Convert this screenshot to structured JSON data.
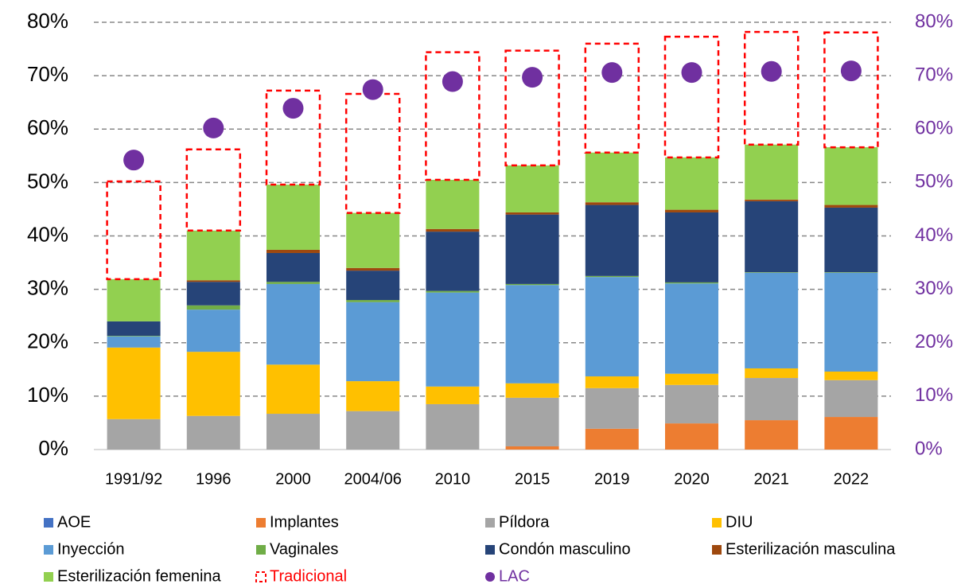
{
  "chart_data": {
    "type": "bar",
    "stacked": true,
    "categories": [
      "1991/92",
      "1996",
      "2000",
      "2004/06",
      "2010",
      "2015",
      "2019",
      "2020",
      "2021",
      "2022"
    ],
    "series": [
      {
        "name": "AOE",
        "color": "#4472c4",
        "values": [
          0,
          0,
          0,
          0,
          0,
          0,
          0,
          0,
          0,
          0
        ]
      },
      {
        "name": "Implantes",
        "color": "#ed7d31",
        "values": [
          0,
          0,
          0,
          0,
          0,
          0.6,
          3.9,
          4.9,
          5.5,
          6.1
        ]
      },
      {
        "name": "Píldora",
        "color": "#a5a5a5",
        "values": [
          5.7,
          6.3,
          6.7,
          7.2,
          8.5,
          9.1,
          7.6,
          7.2,
          7.9,
          6.9
        ]
      },
      {
        "name": "DIU",
        "color": "#ffc000",
        "values": [
          13.4,
          12.0,
          9.2,
          5.6,
          3.3,
          2.7,
          2.2,
          2.1,
          1.8,
          1.6
        ]
      },
      {
        "name": "Inyección",
        "color": "#5b9bd5",
        "values": [
          2.1,
          7.9,
          15.1,
          14.8,
          17.6,
          18.4,
          18.6,
          16.9,
          17.9,
          18.5
        ]
      },
      {
        "name": "Vaginales",
        "color": "#70ad47",
        "values": [
          0.1,
          0.8,
          0.4,
          0.4,
          0.3,
          0.2,
          0.2,
          0.2,
          0.1,
          0.1
        ]
      },
      {
        "name": "Condón masculino",
        "color": "#264478",
        "values": [
          2.7,
          4.4,
          5.4,
          5.5,
          11.1,
          13.0,
          13.3,
          13.1,
          13.3,
          12.1
        ]
      },
      {
        "name": "Esterilización masculina",
        "color": "#9e480e",
        "values": [
          0,
          0.3,
          0.6,
          0.5,
          0.5,
          0.4,
          0.5,
          0.5,
          0.3,
          0.5
        ]
      },
      {
        "name": "Esterilización femenina",
        "color": "#92d050",
        "values": [
          7.9,
          9.3,
          12.2,
          10.3,
          9.2,
          8.8,
          9.3,
          9.8,
          10.3,
          10.8
        ]
      },
      {
        "name": "Tradicional",
        "color": "#ff0000",
        "dashed": true,
        "values": [
          18.3,
          15.2,
          17.6,
          22.3,
          23.9,
          21.5,
          20.4,
          22.6,
          21.1,
          21.5
        ]
      },
      {
        "name": "LAC",
        "color": "#7030a0",
        "type": "scatter",
        "axis": "y2",
        "values": [
          54.2,
          60.2,
          63.9,
          67.4,
          68.9,
          69.7,
          70.6,
          70.6,
          70.8,
          70.9
        ]
      }
    ],
    "ylim": [
      0,
      80
    ],
    "yticks": [
      {
        "value": 0,
        "label": "0%"
      },
      {
        "value": 10,
        "label": "10%"
      },
      {
        "value": 20,
        "label": "20%"
      },
      {
        "value": 30,
        "label": "30%"
      },
      {
        "value": 40,
        "label": "40%"
      },
      {
        "value": 50,
        "label": "50%"
      },
      {
        "value": 60,
        "label": "60%"
      },
      {
        "value": 70,
        "label": "70%"
      },
      {
        "value": 80,
        "label": "80%"
      }
    ],
    "y2lim": [
      0,
      80
    ],
    "y2ticks": [
      {
        "value": 0,
        "label": "0%"
      },
      {
        "value": 10,
        "label": "10%"
      },
      {
        "value": 20,
        "label": "20%"
      },
      {
        "value": 30,
        "label": "30%"
      },
      {
        "value": 40,
        "label": "40%"
      },
      {
        "value": 50,
        "label": "50%"
      },
      {
        "value": 60,
        "label": "60%"
      },
      {
        "value": 70,
        "label": "70%"
      },
      {
        "value": 80,
        "label": "80%"
      }
    ],
    "y2color": "#7030a0",
    "grid": true,
    "legend": "bottom"
  }
}
